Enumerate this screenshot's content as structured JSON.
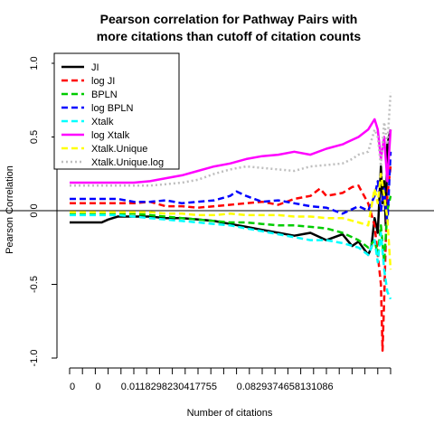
{
  "chart_data": {
    "type": "line",
    "title_line1": "Pearson correlation for Pathway Pairs with",
    "title_line2": "more citations than cutoff of citation counts",
    "xlabel": "Number of citations",
    "ylabel": "Pearson Correlation",
    "ylim": [
      -1.0,
      1.0
    ],
    "y_ticks": [
      "-1.0",
      "-0.5",
      "0.0",
      "0.5",
      "1.0"
    ],
    "x_tick_labels": [
      "0",
      "0",
      "0.0118298230417755",
      "0.0829374658131086"
    ],
    "x_tick_count": 26,
    "x_tick_labeled_indices": [
      0,
      2,
      4,
      13
    ],
    "reference_line_y": 0,
    "legend_position": "top-left",
    "series": [
      {
        "name": "JI",
        "color": "#000000",
        "dash": "solid",
        "points": [
          [
            0,
            -0.08
          ],
          [
            0.1,
            -0.08
          ],
          [
            0.12,
            -0.06
          ],
          [
            0.15,
            -0.04
          ],
          [
            0.2,
            -0.04
          ],
          [
            0.25,
            -0.04
          ],
          [
            0.3,
            -0.05
          ],
          [
            0.35,
            -0.05
          ],
          [
            0.4,
            -0.06
          ],
          [
            0.45,
            -0.07
          ],
          [
            0.5,
            -0.09
          ],
          [
            0.55,
            -0.11
          ],
          [
            0.6,
            -0.13
          ],
          [
            0.65,
            -0.15
          ],
          [
            0.7,
            -0.17
          ],
          [
            0.75,
            -0.15
          ],
          [
            0.8,
            -0.2
          ],
          [
            0.85,
            -0.16
          ],
          [
            0.88,
            -0.24
          ],
          [
            0.9,
            -0.21
          ],
          [
            0.93,
            -0.3
          ],
          [
            0.94,
            -0.25
          ],
          [
            0.95,
            -0.05
          ],
          [
            0.96,
            -0.15
          ],
          [
            0.97,
            0.3
          ],
          [
            0.975,
            0.05
          ],
          [
            0.98,
            0.2
          ],
          [
            0.985,
            -0.1
          ],
          [
            0.99,
            0.45
          ],
          [
            1.0,
            0.55
          ]
        ]
      },
      {
        "name": "log JI",
        "color": "#ff0000",
        "dash": "dashed",
        "points": [
          [
            0,
            0.05
          ],
          [
            0.1,
            0.05
          ],
          [
            0.15,
            0.05
          ],
          [
            0.2,
            0.05
          ],
          [
            0.25,
            0.06
          ],
          [
            0.3,
            0.03
          ],
          [
            0.35,
            0.03
          ],
          [
            0.4,
            0.02
          ],
          [
            0.45,
            0.03
          ],
          [
            0.5,
            0.04
          ],
          [
            0.55,
            0.05
          ],
          [
            0.6,
            0.06
          ],
          [
            0.65,
            0.04
          ],
          [
            0.7,
            0.08
          ],
          [
            0.75,
            0.1
          ],
          [
            0.78,
            0.15
          ],
          [
            0.8,
            0.1
          ],
          [
            0.85,
            0.12
          ],
          [
            0.88,
            0.16
          ],
          [
            0.9,
            0.17
          ],
          [
            0.93,
            0.05
          ],
          [
            0.95,
            -0.1
          ],
          [
            0.96,
            -0.3
          ],
          [
            0.97,
            -0.5
          ],
          [
            0.975,
            -0.95
          ],
          [
            0.98,
            -0.6
          ],
          [
            0.985,
            -0.2
          ],
          [
            0.99,
            0.1
          ],
          [
            1.0,
            0.3
          ]
        ]
      },
      {
        "name": "BPLN",
        "color": "#00cc00",
        "dash": "dashed",
        "points": [
          [
            0,
            -0.02
          ],
          [
            0.1,
            -0.02
          ],
          [
            0.15,
            -0.02
          ],
          [
            0.2,
            -0.02
          ],
          [
            0.25,
            -0.03
          ],
          [
            0.3,
            -0.04
          ],
          [
            0.35,
            -0.05
          ],
          [
            0.4,
            -0.06
          ],
          [
            0.45,
            -0.07
          ],
          [
            0.5,
            -0.08
          ],
          [
            0.55,
            -0.08
          ],
          [
            0.6,
            -0.09
          ],
          [
            0.65,
            -0.1
          ],
          [
            0.7,
            -0.1
          ],
          [
            0.75,
            -0.11
          ],
          [
            0.8,
            -0.12
          ],
          [
            0.85,
            -0.15
          ],
          [
            0.9,
            -0.2
          ],
          [
            0.93,
            -0.25
          ],
          [
            0.95,
            -0.2
          ],
          [
            0.96,
            -0.3
          ],
          [
            0.97,
            -0.1
          ],
          [
            0.98,
            -0.35
          ],
          [
            0.99,
            0.0
          ],
          [
            1.0,
            0.1
          ]
        ]
      },
      {
        "name": "log BPLN",
        "color": "#0000ff",
        "dash": "dashed",
        "points": [
          [
            0,
            0.08
          ],
          [
            0.1,
            0.08
          ],
          [
            0.15,
            0.08
          ],
          [
            0.2,
            0.06
          ],
          [
            0.25,
            0.06
          ],
          [
            0.3,
            0.07
          ],
          [
            0.35,
            0.05
          ],
          [
            0.4,
            0.06
          ],
          [
            0.45,
            0.07
          ],
          [
            0.5,
            0.1
          ],
          [
            0.52,
            0.13
          ],
          [
            0.55,
            0.1
          ],
          [
            0.6,
            0.06
          ],
          [
            0.65,
            0.07
          ],
          [
            0.7,
            0.05
          ],
          [
            0.75,
            0.03
          ],
          [
            0.8,
            0.02
          ],
          [
            0.85,
            -0.02
          ],
          [
            0.9,
            0.03
          ],
          [
            0.93,
            0.0
          ],
          [
            0.95,
            0.1
          ],
          [
            0.96,
            0.2
          ],
          [
            0.97,
            0.0
          ],
          [
            0.98,
            0.15
          ],
          [
            0.99,
            -0.1
          ],
          [
            1.0,
            0.4
          ]
        ]
      },
      {
        "name": "Xtalk",
        "color": "#00ffff",
        "dash": "dashed",
        "points": [
          [
            0,
            -0.03
          ],
          [
            0.1,
            -0.03
          ],
          [
            0.15,
            -0.03
          ],
          [
            0.2,
            -0.04
          ],
          [
            0.25,
            -0.05
          ],
          [
            0.3,
            -0.06
          ],
          [
            0.35,
            -0.07
          ],
          [
            0.4,
            -0.08
          ],
          [
            0.45,
            -0.09
          ],
          [
            0.5,
            -0.1
          ],
          [
            0.55,
            -0.12
          ],
          [
            0.6,
            -0.14
          ],
          [
            0.65,
            -0.16
          ],
          [
            0.7,
            -0.18
          ],
          [
            0.75,
            -0.2
          ],
          [
            0.8,
            -0.2
          ],
          [
            0.85,
            -0.22
          ],
          [
            0.9,
            -0.25
          ],
          [
            0.93,
            -0.3
          ],
          [
            0.95,
            -0.2
          ],
          [
            0.96,
            -0.35
          ],
          [
            0.97,
            -0.15
          ],
          [
            0.98,
            -0.4
          ],
          [
            0.99,
            -0.55
          ],
          [
            1.0,
            -0.6
          ]
        ]
      },
      {
        "name": "log Xtalk",
        "color": "#ff00ff",
        "dash": "solid",
        "points": [
          [
            0,
            0.19
          ],
          [
            0.1,
            0.19
          ],
          [
            0.15,
            0.19
          ],
          [
            0.2,
            0.19
          ],
          [
            0.25,
            0.2
          ],
          [
            0.3,
            0.22
          ],
          [
            0.35,
            0.24
          ],
          [
            0.4,
            0.27
          ],
          [
            0.45,
            0.3
          ],
          [
            0.5,
            0.32
          ],
          [
            0.55,
            0.35
          ],
          [
            0.6,
            0.37
          ],
          [
            0.65,
            0.38
          ],
          [
            0.7,
            0.4
          ],
          [
            0.75,
            0.38
          ],
          [
            0.8,
            0.42
          ],
          [
            0.85,
            0.45
          ],
          [
            0.88,
            0.48
          ],
          [
            0.9,
            0.5
          ],
          [
            0.93,
            0.55
          ],
          [
            0.95,
            0.62
          ],
          [
            0.96,
            0.55
          ],
          [
            0.97,
            0.35
          ],
          [
            0.98,
            0.5
          ],
          [
            0.99,
            0.2
          ],
          [
            1.0,
            0.55
          ]
        ]
      },
      {
        "name": "Xtalk.Unique",
        "color": "#ffff00",
        "dash": "dashed",
        "points": [
          [
            0,
            -0.01
          ],
          [
            0.1,
            -0.01
          ],
          [
            0.15,
            -0.01
          ],
          [
            0.2,
            -0.01
          ],
          [
            0.25,
            -0.01
          ],
          [
            0.3,
            -0.02
          ],
          [
            0.35,
            -0.02
          ],
          [
            0.4,
            -0.03
          ],
          [
            0.45,
            -0.03
          ],
          [
            0.5,
            -0.02
          ],
          [
            0.55,
            -0.03
          ],
          [
            0.6,
            -0.03
          ],
          [
            0.65,
            -0.03
          ],
          [
            0.7,
            -0.04
          ],
          [
            0.75,
            -0.04
          ],
          [
            0.8,
            -0.05
          ],
          [
            0.85,
            -0.05
          ],
          [
            0.9,
            -0.08
          ],
          [
            0.93,
            -0.1
          ],
          [
            0.95,
            0.15
          ],
          [
            0.96,
            0.05
          ],
          [
            0.97,
            0.25
          ],
          [
            0.98,
            0.1
          ],
          [
            0.99,
            -0.05
          ],
          [
            1.0,
            -0.4
          ]
        ]
      },
      {
        "name": "Xtalk.Unique.log",
        "color": "#bebebe",
        "dash": "dotted",
        "points": [
          [
            0,
            0.17
          ],
          [
            0.1,
            0.17
          ],
          [
            0.15,
            0.17
          ],
          [
            0.2,
            0.17
          ],
          [
            0.25,
            0.17
          ],
          [
            0.3,
            0.18
          ],
          [
            0.35,
            0.19
          ],
          [
            0.4,
            0.21
          ],
          [
            0.45,
            0.25
          ],
          [
            0.5,
            0.28
          ],
          [
            0.55,
            0.3
          ],
          [
            0.6,
            0.29
          ],
          [
            0.65,
            0.28
          ],
          [
            0.7,
            0.27
          ],
          [
            0.75,
            0.3
          ],
          [
            0.8,
            0.31
          ],
          [
            0.85,
            0.32
          ],
          [
            0.88,
            0.35
          ],
          [
            0.9,
            0.38
          ],
          [
            0.93,
            0.4
          ],
          [
            0.95,
            0.55
          ],
          [
            0.96,
            0.5
          ],
          [
            0.97,
            0.3
          ],
          [
            0.98,
            0.6
          ],
          [
            0.99,
            0.45
          ],
          [
            1.0,
            0.8
          ]
        ]
      }
    ]
  }
}
